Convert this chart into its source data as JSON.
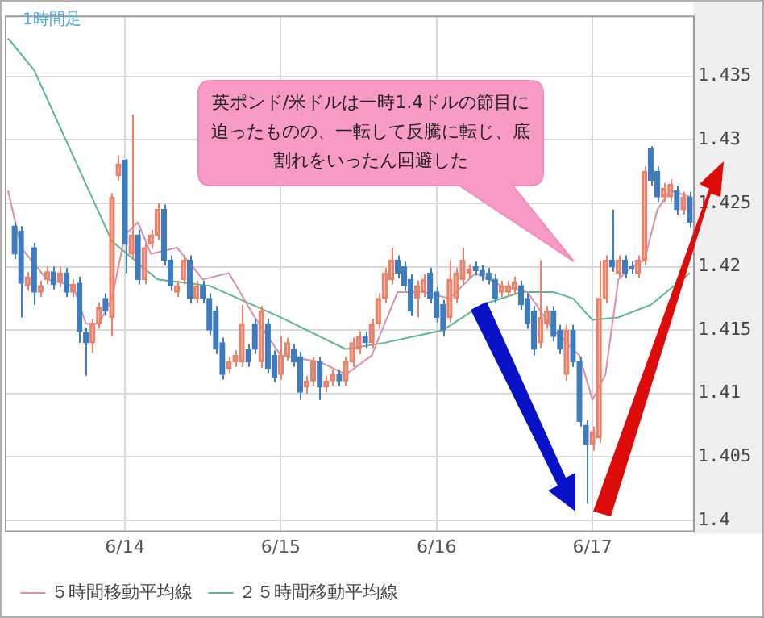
{
  "chart_data": {
    "type": "candlestick",
    "annotations": [
      "1時間足",
      "英ポンド/米ドルは一時1.4ドルの節目に迫ったものの、一転して反騰に転じ、底割れをいったん回避した"
    ],
    "categories": [
      null,
      null,
      null,
      null,
      null,
      null,
      null,
      null,
      null,
      null,
      null,
      null,
      null,
      null,
      null,
      null,
      null,
      null,
      "6/14",
      null,
      null,
      null,
      null,
      null,
      null,
      null,
      null,
      null,
      null,
      null,
      null,
      null,
      null,
      null,
      null,
      null,
      null,
      null,
      null,
      null,
      null,
      null,
      "6/15",
      null,
      null,
      null,
      null,
      null,
      null,
      null,
      null,
      null,
      null,
      null,
      null,
      null,
      null,
      null,
      null,
      null,
      null,
      null,
      null,
      null,
      null,
      null,
      "6/16",
      null,
      null,
      null,
      null,
      null,
      null,
      null,
      null,
      null,
      null,
      null,
      null,
      null,
      null,
      null,
      null,
      null,
      null,
      null,
      null,
      null,
      null,
      null,
      "6/17",
      null,
      null,
      null,
      null,
      null,
      null,
      null,
      null,
      null,
      null,
      null,
      null,
      null,
      null,
      null
    ],
    "ohlc": [
      null,
      [
        1.4232,
        1.4235,
        1.4206,
        1.421
      ],
      [
        1.4228,
        1.4232,
        1.416,
        1.4187
      ],
      [
        1.4185,
        1.4196,
        1.4181,
        1.4192
      ],
      [
        1.4215,
        1.4219,
        1.417,
        1.418
      ],
      [
        1.418,
        1.4189,
        1.4176,
        1.4185
      ],
      [
        1.419,
        1.42,
        1.4186,
        1.4196
      ],
      [
        1.4196,
        1.42,
        1.4182,
        1.4186
      ],
      [
        1.4188,
        1.42,
        1.4184,
        1.4195
      ],
      [
        1.4195,
        1.4199,
        1.4176,
        1.418
      ],
      [
        1.418,
        1.419,
        1.4176,
        1.4186
      ],
      [
        1.4187,
        1.4192,
        1.414,
        1.4149
      ],
      [
        1.4148,
        1.4152,
        1.4114,
        1.414
      ],
      [
        1.414,
        1.4159,
        1.4132,
        1.4155
      ],
      [
        1.4155,
        1.4172,
        1.4151,
        1.4168
      ],
      [
        1.4175,
        1.4179,
        1.4161,
        1.4165
      ],
      [
        1.416,
        1.4258,
        1.4145,
        1.4255
      ],
      [
        1.4272,
        1.4288,
        1.4268,
        1.4281
      ],
      [
        1.4284,
        1.4285,
        1.4195,
        1.4218
      ],
      [
        1.421,
        1.432,
        1.4206,
        1.4225
      ],
      [
        1.4225,
        1.4229,
        1.4186,
        1.419
      ],
      [
        1.419,
        1.4219,
        1.4186,
        1.4215
      ],
      [
        1.4218,
        1.4229,
        1.4214,
        1.4225
      ],
      [
        1.4225,
        1.425,
        1.4221,
        1.4245
      ],
      [
        1.4245,
        1.4249,
        1.4201,
        1.4205
      ],
      [
        1.4205,
        1.4209,
        1.4181,
        1.4185
      ],
      [
        1.418,
        1.4189,
        1.4176,
        1.4185
      ],
      [
        1.419,
        1.4209,
        1.4186,
        1.4205
      ],
      [
        1.4205,
        1.4209,
        1.4171,
        1.4175
      ],
      [
        1.4175,
        1.4189,
        1.4171,
        1.4185
      ],
      [
        1.4185,
        1.4189,
        1.4171,
        1.4175
      ],
      [
        1.4175,
        1.4179,
        1.4146,
        1.415
      ],
      [
        1.4165,
        1.4169,
        1.4131,
        1.4135
      ],
      [
        1.414,
        1.4144,
        1.4111,
        1.4115
      ],
      [
        1.412,
        1.4129,
        1.4116,
        1.4125
      ],
      [
        1.4125,
        1.4134,
        1.4121,
        1.413
      ],
      [
        1.4125,
        1.417,
        1.4121,
        1.4155
      ],
      [
        1.4135,
        1.4139,
        1.4121,
        1.4125
      ],
      [
        1.4155,
        1.4159,
        1.4131,
        1.4135
      ],
      [
        1.4125,
        1.4169,
        1.412,
        1.4165
      ],
      [
        1.4155,
        1.4159,
        1.4116,
        1.412
      ],
      [
        1.413,
        1.4134,
        1.4109,
        1.4113
      ],
      [
        1.4115,
        1.4145,
        1.4111,
        1.413
      ],
      [
        1.413,
        1.4144,
        1.4126,
        1.414
      ],
      [
        1.4135,
        1.4139,
        1.4121,
        1.4125
      ],
      [
        1.4129,
        1.4133,
        1.4095,
        1.4101
      ],
      [
        1.4105,
        1.4114,
        1.41,
        1.411
      ],
      [
        1.411,
        1.4129,
        1.4106,
        1.4125
      ],
      [
        1.4125,
        1.4129,
        1.4095,
        1.4105
      ],
      [
        1.4105,
        1.4114,
        1.4101,
        1.411
      ],
      [
        1.411,
        1.4119,
        1.4106,
        1.4115
      ],
      [
        1.4115,
        1.4119,
        1.4106,
        1.411
      ],
      [
        1.411,
        1.4129,
        1.4106,
        1.4125
      ],
      [
        1.4125,
        1.4144,
        1.4121,
        1.414
      ],
      [
        1.4135,
        1.4149,
        1.4131,
        1.4145
      ],
      [
        1.4145,
        1.4149,
        1.4136,
        1.414
      ],
      [
        1.414,
        1.4159,
        1.4136,
        1.4155
      ],
      [
        1.4155,
        1.4179,
        1.4151,
        1.4175
      ],
      [
        1.4175,
        1.4199,
        1.4171,
        1.4195
      ],
      [
        1.419,
        1.4215,
        1.4186,
        1.4205
      ],
      [
        1.4205,
        1.4209,
        1.4191,
        1.4195
      ],
      [
        1.42,
        1.4204,
        1.4181,
        1.4185
      ],
      [
        1.419,
        1.4194,
        1.4161,
        1.4165
      ],
      [
        1.4175,
        1.4189,
        1.416,
        1.4185
      ],
      [
        1.418,
        1.4194,
        1.4176,
        1.419
      ],
      [
        1.4195,
        1.4199,
        1.4171,
        1.4175
      ],
      [
        1.418,
        1.4184,
        1.4156,
        1.416
      ],
      [
        1.417,
        1.4174,
        1.4145,
        1.415
      ],
      [
        1.416,
        1.4205,
        1.4156,
        1.419
      ],
      [
        1.4175,
        1.4199,
        1.4171,
        1.4195
      ],
      [
        1.419,
        1.4215,
        1.4186,
        1.4205
      ],
      [
        1.4195,
        1.4202,
        1.4191,
        1.4198
      ],
      [
        1.42,
        1.4204,
        1.4193,
        1.4197
      ],
      [
        1.4197,
        1.4201,
        1.4189,
        1.4193
      ],
      [
        1.4195,
        1.4199,
        1.4186,
        1.419
      ],
      [
        1.419,
        1.4194,
        1.4171,
        1.4175
      ],
      [
        1.418,
        1.4189,
        1.4176,
        1.4185
      ],
      [
        1.418,
        1.4189,
        1.4176,
        1.4185
      ],
      [
        1.4182,
        1.4192,
        1.4178,
        1.4188
      ],
      [
        1.4185,
        1.4189,
        1.4166,
        1.417
      ],
      [
        1.4175,
        1.4179,
        1.4151,
        1.4155
      ],
      [
        1.4165,
        1.4169,
        1.413,
        1.4135
      ],
      [
        1.414,
        1.4205,
        1.4136,
        1.416
      ],
      [
        1.4155,
        1.4169,
        1.4151,
        1.4165
      ],
      [
        1.4165,
        1.4169,
        1.4141,
        1.4145
      ],
      [
        1.415,
        1.4154,
        1.4131,
        1.4135
      ],
      [
        1.4115,
        1.4154,
        1.411,
        1.415
      ],
      [
        1.415,
        1.4154,
        1.4121,
        1.4125
      ],
      [
        1.4125,
        1.4129,
        1.4074,
        1.4078
      ],
      [
        1.4075,
        1.4079,
        1.4013,
        1.406
      ],
      [
        1.406,
        1.4074,
        1.4055,
        1.407
      ],
      [
        1.4065,
        1.4205,
        1.4061,
        1.4175
      ],
      [
        1.4175,
        1.4209,
        1.4171,
        1.4205
      ],
      [
        1.4205,
        1.4245,
        1.4196,
        1.42
      ],
      [
        1.4195,
        1.4209,
        1.4191,
        1.4205
      ],
      [
        1.4205,
        1.4209,
        1.4191,
        1.4195
      ],
      [
        1.42,
        1.4204,
        1.4194,
        1.4198
      ],
      [
        1.4195,
        1.4209,
        1.4191,
        1.4205
      ],
      [
        1.4205,
        1.4279,
        1.4201,
        1.4275
      ],
      [
        1.4293,
        1.4295,
        1.4264,
        1.4268
      ],
      [
        1.4275,
        1.4279,
        1.4251,
        1.4255
      ],
      [
        1.4255,
        1.4266,
        1.4251,
        1.4262
      ],
      [
        1.4255,
        1.4269,
        1.4251,
        1.4265
      ],
      [
        1.426,
        1.4264,
        1.4241,
        1.4245
      ],
      [
        1.4245,
        1.4259,
        1.4241,
        1.4255
      ],
      [
        1.4255,
        1.4259,
        1.4231,
        1.4235
      ]
    ],
    "colors": [
      null,
      "#3d7cc0",
      "#3d7cc0",
      "#e8826a",
      "#3d7cc0",
      "#e8826a",
      "#e8826a",
      "#3d7cc0",
      "#e8826a",
      "#3d7cc0",
      "#e8826a",
      "#3d7cc0",
      "#3d7cc0",
      "#e8826a",
      "#e8826a",
      "#3d7cc0",
      "#e8826a",
      "#e8826a",
      "#3d7cc0",
      "#e8826a",
      "#3d7cc0",
      "#e8826a",
      "#e8826a",
      "#e8826a",
      "#3d7cc0",
      "#3d7cc0",
      "#e8826a",
      "#e8826a",
      "#3d7cc0",
      "#e8826a",
      "#3d7cc0",
      "#3d7cc0",
      "#3d7cc0",
      "#3d7cc0",
      "#e8826a",
      "#e8826a",
      "#e8826a",
      "#3d7cc0",
      "#3d7cc0",
      "#e8826a",
      "#3d7cc0",
      "#3d7cc0",
      "#e8826a",
      "#e8826a",
      "#3d7cc0",
      "#3d7cc0",
      "#e8826a",
      "#e8826a",
      "#3d7cc0",
      "#e8826a",
      "#e8826a",
      "#3d7cc0",
      "#e8826a",
      "#e8826a",
      "#e8826a",
      "#3d7cc0",
      "#e8826a",
      "#e8826a",
      "#e8826a",
      "#e8826a",
      "#3d7cc0",
      "#3d7cc0",
      "#3d7cc0",
      "#e8826a",
      "#e8826a",
      "#3d7cc0",
      "#3d7cc0",
      "#3d7cc0",
      "#e8826a",
      "#e8826a",
      "#e8826a",
      "#e8826a",
      "#3d7cc0",
      "#3d7cc0",
      "#3d7cc0",
      "#3d7cc0",
      "#e8826a",
      "#e8826a",
      "#e8826a",
      "#3d7cc0",
      "#3d7cc0",
      "#3d7cc0",
      "#e8826a",
      "#e8826a",
      "#3d7cc0",
      "#3d7cc0",
      "#e8826a",
      "#3d7cc0",
      "#3d7cc0",
      "#3d7cc0",
      "#e8826a",
      "#e8826a",
      "#e8826a",
      "#3d7cc0",
      "#e8826a",
      "#3d7cc0",
      "#3d7cc0",
      "#e8826a",
      "#e8826a",
      "#3d7cc0",
      "#3d7cc0",
      "#e8826a",
      "#e8826a",
      "#3d7cc0",
      "#e8826a",
      "#3d7cc0"
    ],
    "series": [
      {
        "type": "line",
        "name": "５時間移動平均線",
        "color": "#d98fa8",
        "values": [
          1.426,
          null,
          1.4215,
          null,
          null,
          null,
          1.419,
          null,
          null,
          null,
          1.4185,
          null,
          1.4155,
          null,
          1.4155,
          null,
          1.4175,
          null,
          1.4225,
          null,
          1.4235,
          null,
          1.421,
          null,
          null,
          null,
          1.4215,
          null,
          null,
          null,
          1.419,
          null,
          null,
          null,
          1.4195,
          null,
          null,
          null,
          1.416,
          null,
          null,
          null,
          1.413,
          null,
          null,
          null,
          null,
          null,
          1.4125,
          null,
          null,
          null,
          1.4115,
          null,
          null,
          null,
          1.413,
          null,
          null,
          null,
          1.418,
          null,
          null,
          null,
          1.418,
          null,
          null,
          null,
          1.4175,
          null,
          null,
          null,
          1.4195,
          null,
          null,
          null,
          1.4185,
          null,
          null,
          null,
          1.418,
          null,
          null,
          null,
          1.415,
          null,
          null,
          null,
          1.413,
          null,
          1.4095,
          null,
          1.4115,
          null,
          1.419,
          null,
          1.42,
          null,
          1.4205,
          null,
          1.4245,
          null,
          1.426,
          null,
          null,
          1.4255
        ]
      },
      {
        "type": "line",
        "name": "２５時間移動平均線",
        "color": "#5cb88a",
        "values": [
          1.438,
          null,
          null,
          null,
          1.4355,
          null,
          null,
          null,
          1.431,
          null,
          null,
          null,
          1.4265,
          null,
          null,
          null,
          1.422,
          null,
          null,
          null,
          null,
          null,
          null,
          1.419,
          null,
          null,
          null,
          null,
          null,
          null,
          null,
          1.4185,
          null,
          null,
          null,
          null,
          null,
          null,
          null,
          null,
          null,
          null,
          1.416,
          null,
          null,
          null,
          null,
          null,
          null,
          null,
          null,
          null,
          1.4135,
          null,
          null,
          null,
          null,
          null,
          1.414,
          null,
          null,
          null,
          null,
          null,
          null,
          null,
          null,
          1.415,
          null,
          null,
          null,
          null,
          null,
          1.417,
          null,
          null,
          null,
          null,
          null,
          1.418,
          null,
          null,
          null,
          null,
          1.418,
          null,
          null,
          1.4175,
          null,
          null,
          1.4158,
          null,
          null,
          null,
          1.416,
          null,
          null,
          null,
          null,
          1.417,
          null,
          null,
          null,
          null,
          null,
          1.4195
        ]
      }
    ],
    "ylim": [
      1.3992,
      1.4398
    ],
    "yticks": [
      1.4,
      1.405,
      1.41,
      1.415,
      1.42,
      1.425,
      1.43,
      1.435
    ],
    "grid": true,
    "legend": "bottom left",
    "marker": "none"
  }
}
